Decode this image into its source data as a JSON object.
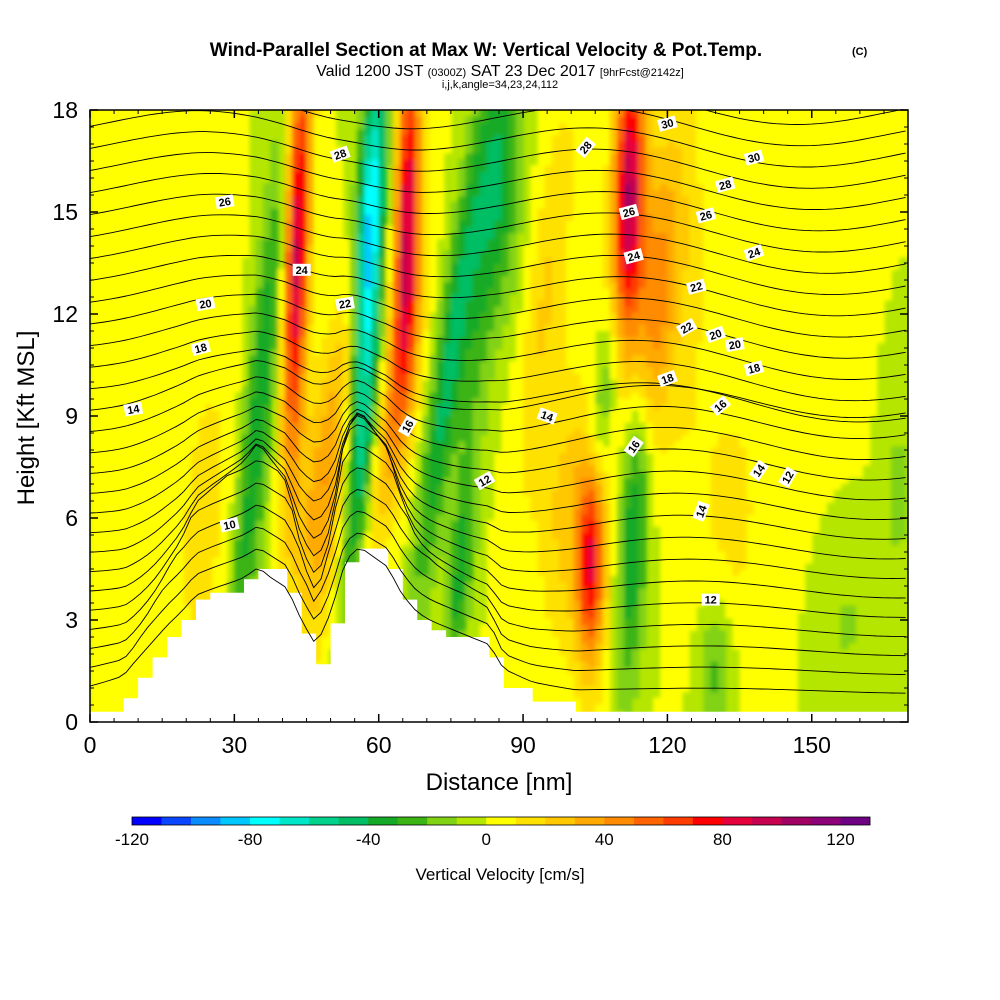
{
  "chart_data": {
    "type": "heatmap",
    "title": "Wind-Parallel Section at Max W: Vertical Velocity & Pot.Temp.",
    "title_mark": "(C)",
    "subtitle_parts": [
      "Valid 1200 JST ",
      "(0300Z)",
      " SAT 23 Dec 2017 ",
      "[9hrFcst@2142z]"
    ],
    "subtitle2": "i,j,k,angle=34,23,24,112",
    "xlabel": "Distance [nm]",
    "ylabel": "Height [Kft MSL]",
    "xlim": [
      0,
      170
    ],
    "ylim": [
      0,
      18
    ],
    "x_ticks": [
      "0",
      "30",
      "60",
      "90",
      "120",
      "150"
    ],
    "y_ticks": [
      "0",
      "3",
      "6",
      "9",
      "12",
      "15",
      "18"
    ],
    "colorbar": {
      "label": "Vertical Velocity [cm/s]",
      "range": [
        -120,
        130
      ],
      "tick_labels": [
        "-120",
        "-80",
        "-40",
        "0",
        "40",
        "80",
        "120"
      ],
      "colors": [
        "#0000ff",
        "#0a46ff",
        "#0a8cff",
        "#00c8ff",
        "#00ffff",
        "#00e6c8",
        "#00d28c",
        "#00be64",
        "#14aa28",
        "#3cb414",
        "#82d214",
        "#b4e600",
        "#ffff00",
        "#ffe100",
        "#ffc800",
        "#ffaa00",
        "#ff8c00",
        "#ff6400",
        "#ff3c00",
        "#ff0000",
        "#e6003c",
        "#c80050",
        "#a00064",
        "#8c0078",
        "#6e0082"
      ]
    },
    "vertical_velocity_features": [
      {
        "type": "updraft",
        "x": 43,
        "z_min": 6,
        "z_max": 18,
        "peak": 90
      },
      {
        "type": "downdraft",
        "x": 36,
        "z_min": 3,
        "z_max": 18,
        "peak": -50
      },
      {
        "type": "updraft",
        "x": 51,
        "z_min": 5,
        "z_max": 11,
        "peak": 35
      },
      {
        "type": "downdraft",
        "x": 58,
        "z_min": 5,
        "z_max": 18,
        "peak": -85
      },
      {
        "type": "updraft",
        "x": 66,
        "z_min": 8,
        "z_max": 18,
        "peak": 90
      },
      {
        "type": "downdraft",
        "x": 73,
        "z_min": 4,
        "z_max": 18,
        "peak": -55
      },
      {
        "type": "updraft",
        "x": 104,
        "z_min": 2,
        "z_max": 8,
        "peak": 65
      },
      {
        "type": "updraft",
        "x": 113,
        "z_min": 10,
        "z_max": 18,
        "peak": 95
      }
    ],
    "theta_contour_labels": [
      "10",
      "12",
      "12",
      "12",
      "14",
      "14",
      "14",
      "14",
      "16",
      "16",
      "16",
      "18",
      "18",
      "18",
      "20",
      "20",
      "20",
      "22",
      "22",
      "22",
      "24",
      "24",
      "24",
      "26",
      "26",
      "26",
      "28",
      "28",
      "28",
      "30",
      "30"
    ],
    "terrain": [
      {
        "x": 0,
        "z": 0.3
      },
      {
        "x": 7,
        "z": 0.7
      },
      {
        "x": 10,
        "z": 1.3
      },
      {
        "x": 13,
        "z": 1.9
      },
      {
        "x": 16,
        "z": 2.5
      },
      {
        "x": 19,
        "z": 3.0
      },
      {
        "x": 22,
        "z": 3.6
      },
      {
        "x": 25,
        "z": 3.8
      },
      {
        "x": 32,
        "z": 4.2
      },
      {
        "x": 35,
        "z": 4.5
      },
      {
        "x": 41,
        "z": 3.8
      },
      {
        "x": 44,
        "z": 2.6
      },
      {
        "x": 47,
        "z": 1.7
      },
      {
        "x": 50,
        "z": 2.9
      },
      {
        "x": 53,
        "z": 4.7
      },
      {
        "x": 56,
        "z": 5.1
      },
      {
        "x": 62,
        "z": 4.5
      },
      {
        "x": 65,
        "z": 3.6
      },
      {
        "x": 68,
        "z": 3.0
      },
      {
        "x": 71,
        "z": 2.7
      },
      {
        "x": 74,
        "z": 2.5
      },
      {
        "x": 83,
        "z": 1.9
      },
      {
        "x": 86,
        "z": 1.0
      },
      {
        "x": 92,
        "z": 0.6
      },
      {
        "x": 101,
        "z": 0.3
      },
      {
        "x": 170,
        "z": 0.3
      }
    ]
  }
}
